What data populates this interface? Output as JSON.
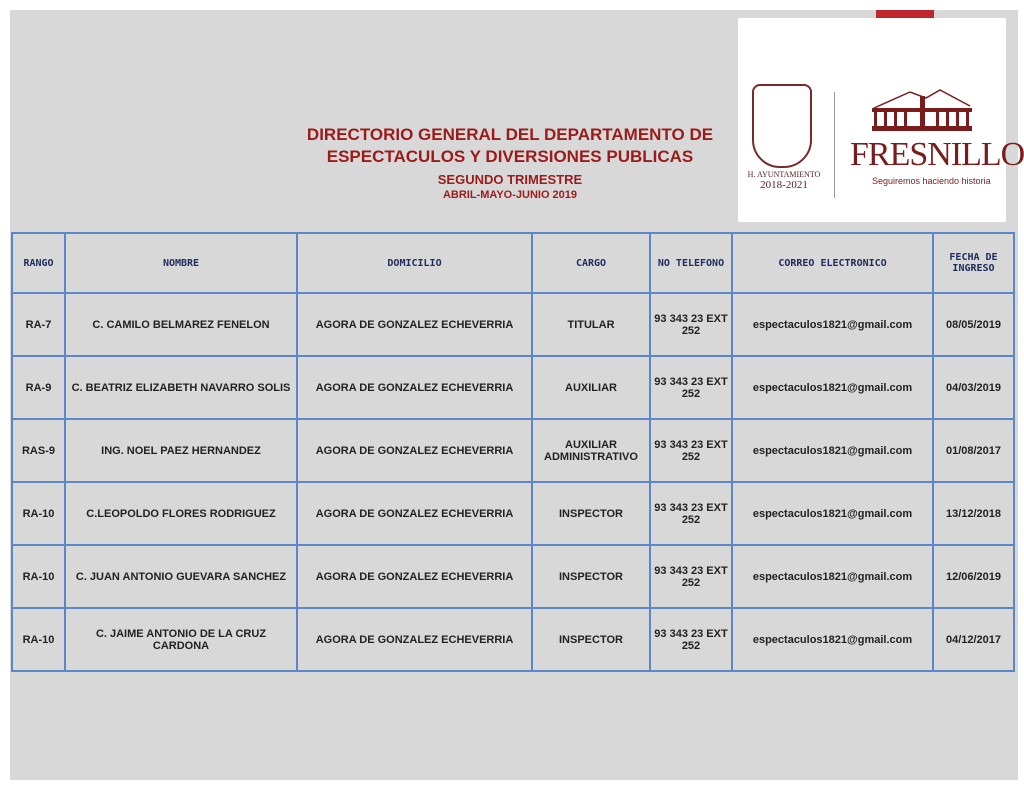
{
  "header": {
    "title_line1": "DIRECTORIO GENERAL DEL DEPARTAMENTO DE",
    "title_line2": "ESPECTACULOS Y DIVERSIONES PUBLICAS",
    "subtitle": "SEGUNDO TRIMESTRE",
    "period": "ABRIL-MAYO-JUNIO  2019"
  },
  "logo": {
    "ayuntamiento": "H. AYUNTAMIENTO",
    "years": "2018-2021",
    "city": "FRESNILLO",
    "slogan": "Seguiremos haciendo historia",
    "brand_color": "#7a1c1c"
  },
  "table": {
    "columns": [
      "RANGO",
      "NOMBRE",
      "DOMICILIO",
      "CARGO",
      "NO TELEFONO",
      "CORREO ELECTRONICO",
      "FECHA DE INGRESO"
    ],
    "rows": [
      [
        "RA-7",
        "C. CAMILO BELMAREZ FENELON",
        "AGORA DE GONZALEZ ECHEVERRIA",
        "TITULAR",
        "93 343 23 EXT 252",
        "espectaculos1821@gmail.com",
        "08/05/2019"
      ],
      [
        "RA-9",
        "C. BEATRIZ ELIZABETH NAVARRO SOLIS",
        "AGORA DE GONZALEZ ECHEVERRIA",
        "AUXILIAR",
        "93 343 23 EXT 252",
        "espectaculos1821@gmail.com",
        "04/03/2019"
      ],
      [
        "RAS-9",
        "ING. NOEL PAEZ HERNANDEZ",
        "AGORA DE GONZALEZ ECHEVERRIA",
        "AUXILIAR ADMINISTRATIVO",
        "93 343 23 EXT 252",
        "espectaculos1821@gmail.com",
        "01/08/2017"
      ],
      [
        "RA-10",
        "C.LEOPOLDO FLORES RODRIGUEZ",
        "AGORA DE GONZALEZ ECHEVERRIA",
        "INSPECTOR",
        "93 343 23 EXT 252",
        "espectaculos1821@gmail.com",
        "13/12/2018"
      ],
      [
        "RA-10",
        "C. JUAN ANTONIO GUEVARA SANCHEZ",
        "AGORA DE GONZALEZ ECHEVERRIA",
        "INSPECTOR",
        "93 343 23 EXT 252",
        "espectaculos1821@gmail.com",
        "12/06/2019"
      ],
      [
        "RA-10",
        "C. JAIME ANTONIO DE LA CRUZ CARDONA",
        "AGORA DE GONZALEZ ECHEVERRIA",
        "INSPECTOR",
        "93 343 23 EXT 252",
        "espectaculos1821@gmail.com",
        "04/12/2017"
      ]
    ]
  }
}
